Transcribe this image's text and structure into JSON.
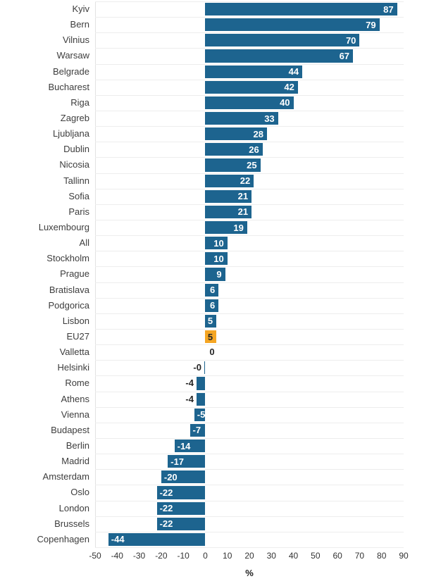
{
  "chart_data": {
    "type": "bar",
    "orientation": "horizontal",
    "title": "",
    "xlabel": "%",
    "xlim": [
      -50,
      90
    ],
    "xticks": [
      -50,
      -40,
      -30,
      -20,
      -10,
      0,
      10,
      20,
      30,
      40,
      50,
      60,
      70,
      80,
      90
    ],
    "grid": "horizontal-row-lines",
    "legend": "none",
    "bar_color": "#1d648f",
    "highlight_color": "#f5a623",
    "value_label_inside_color": "#ffffff",
    "value_label_outside_color": "#262626",
    "items": [
      {
        "city": "Kyiv",
        "value": 87,
        "display": "87"
      },
      {
        "city": "Bern",
        "value": 79,
        "display": "79"
      },
      {
        "city": "Vilnius",
        "value": 70,
        "display": "70"
      },
      {
        "city": "Warsaw",
        "value": 67,
        "display": "67"
      },
      {
        "city": "Belgrade",
        "value": 44,
        "display": "44"
      },
      {
        "city": "Bucharest",
        "value": 42,
        "display": "42"
      },
      {
        "city": "Riga",
        "value": 40,
        "display": "40"
      },
      {
        "city": "Zagreb",
        "value": 33,
        "display": "33"
      },
      {
        "city": "Ljubljana",
        "value": 28,
        "display": "28"
      },
      {
        "city": "Dublin",
        "value": 26,
        "display": "26"
      },
      {
        "city": "Nicosia",
        "value": 25,
        "display": "25"
      },
      {
        "city": "Tallinn",
        "value": 22,
        "display": "22"
      },
      {
        "city": "Sofia",
        "value": 21,
        "display": "21"
      },
      {
        "city": "Paris",
        "value": 21,
        "display": "21"
      },
      {
        "city": "Luxembourg",
        "value": 19,
        "display": "19"
      },
      {
        "city": "All",
        "value": 10,
        "display": "10"
      },
      {
        "city": "Stockholm",
        "value": 10,
        "display": "10"
      },
      {
        "city": "Prague",
        "value": 9,
        "display": "9"
      },
      {
        "city": "Bratislava",
        "value": 6,
        "display": "6"
      },
      {
        "city": "Podgorica",
        "value": 6,
        "display": "6"
      },
      {
        "city": "Lisbon",
        "value": 5,
        "display": "5"
      },
      {
        "city": "EU27",
        "value": 5,
        "display": "5",
        "highlight": true
      },
      {
        "city": "Valletta",
        "value": 0,
        "display": "0"
      },
      {
        "city": "Helsinki",
        "value": 0,
        "display": "-0"
      },
      {
        "city": "Rome",
        "value": -4,
        "display": "-4"
      },
      {
        "city": "Athens",
        "value": -4,
        "display": "-4"
      },
      {
        "city": "Vienna",
        "value": -5,
        "display": "-5"
      },
      {
        "city": "Budapest",
        "value": -7,
        "display": "-7"
      },
      {
        "city": "Berlin",
        "value": -14,
        "display": "-14"
      },
      {
        "city": "Madrid",
        "value": -17,
        "display": "-17"
      },
      {
        "city": "Amsterdam",
        "value": -20,
        "display": "-20"
      },
      {
        "city": "Oslo",
        "value": -22,
        "display": "-22"
      },
      {
        "city": "London",
        "value": -22,
        "display": "-22"
      },
      {
        "city": "Brussels",
        "value": -22,
        "display": "-22"
      },
      {
        "city": "Copenhagen",
        "value": -44,
        "display": "-44"
      }
    ]
  }
}
